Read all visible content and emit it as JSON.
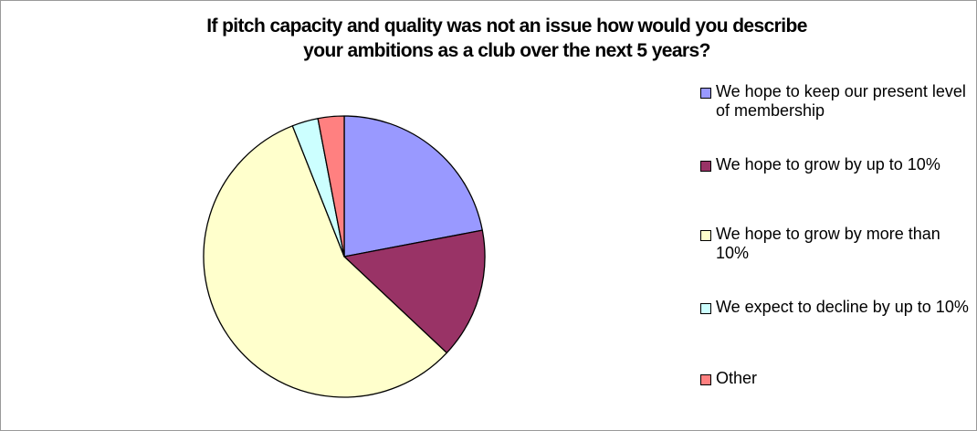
{
  "chart_data": {
    "type": "pie",
    "title_lines": [
      "If pitch capacity and quality was not an issue how would you describe",
      "your ambitions as a club over the next 5 years?"
    ],
    "slices": [
      {
        "label": "We hope to keep our present level of membership",
        "value": 22,
        "color": "#9999ff"
      },
      {
        "label": "We hope to grow by up to 10%",
        "value": 15,
        "color": "#993366"
      },
      {
        "label": "We hope to grow by more than 10%",
        "value": 57,
        "color": "#ffffcc"
      },
      {
        "label": "We expect to decline by up to 10%",
        "value": 3,
        "color": "#ccffff"
      },
      {
        "label": "Other",
        "value": 3,
        "color": "#ff8080"
      }
    ],
    "legend_position": "right"
  }
}
